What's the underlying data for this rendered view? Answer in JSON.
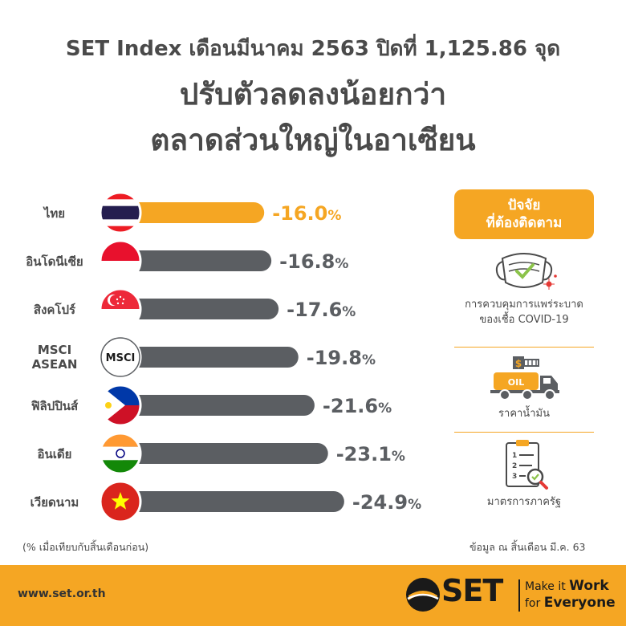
{
  "header": {
    "line1": "SET Index เดือนมีนาคม 2563 ปิดที่ 1,125.86 จุด",
    "line2": "ปรับตัวลดลงน้อยกว่า",
    "line3": "ตลาดส่วนใหญ่ในอาเซียน"
  },
  "chart_data": {
    "type": "bar",
    "orientation": "horizontal",
    "categories": [
      "ไทย",
      "อินโดนีเซีย",
      "สิงคโปร์",
      "MSCI ASEAN",
      "ฟิลิปปินส์",
      "อินเดีย",
      "เวียดนาม"
    ],
    "values": [
      -16.0,
      -16.8,
      -17.6,
      -19.8,
      -21.6,
      -23.1,
      -24.9
    ],
    "value_labels": [
      "-16.0",
      "-16.8",
      "-17.6",
      "-19.8",
      "-21.6",
      "-23.1",
      "-24.9"
    ],
    "unit": "%",
    "highlight_color": "#f5a623",
    "bar_color": "#5b5e62",
    "flags": [
      "thailand-flag",
      "indonesia-flag",
      "singapore-flag",
      "msci-logo",
      "philippines-flag",
      "india-flag",
      "vietnam-flag"
    ],
    "msci_badge_text": "MSCI"
  },
  "factors": {
    "heading_line1": "ปัจจัย",
    "heading_line2": "ที่ต้องติดตาม",
    "items": [
      {
        "icon": "face-mask-icon",
        "line1": "การควบคุมการแพร่ระบาด",
        "line2": "ของเชื้อ COVID-19"
      },
      {
        "icon": "oil-truck-icon",
        "line1": "ราคาน้ำมัน",
        "line2": "",
        "truck_text": "OIL"
      },
      {
        "icon": "checklist-icon",
        "line1": "มาตรการภาครัฐ",
        "line2": ""
      }
    ]
  },
  "notes": {
    "left": "(% เมื่อเทียบกับสิ้นเดือนก่อน)",
    "right": "ข้อมูล ณ สิ้นเดือน มี.ค. 63"
  },
  "footer": {
    "website": "www.set.or.th",
    "logo_text": "SET",
    "slogan_line1_pre": "Make it ",
    "slogan_line1_bold": "Work",
    "slogan_line2_pre": "for ",
    "slogan_line2_bold": "Everyone"
  }
}
